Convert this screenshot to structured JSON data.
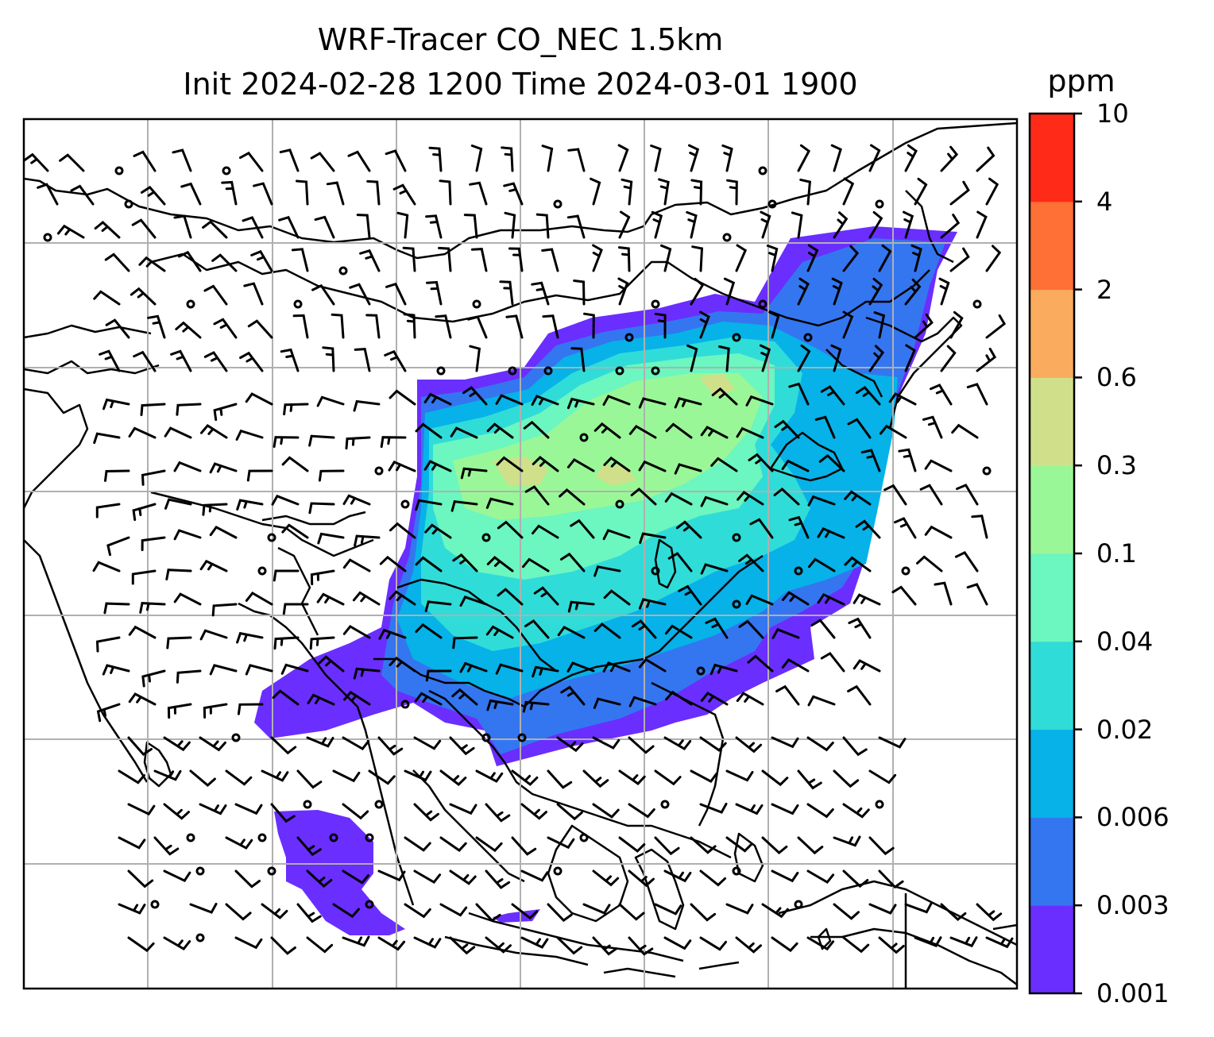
{
  "title": {
    "line1": "WRF-Tracer CO_NEC 1.5km",
    "line2": "Init 2024-02-28 1200 Time 2024-03-01 1900"
  },
  "colorbar": {
    "unit": "ppm",
    "levels": [
      "0.001",
      "0.003",
      "0.006",
      "0.02",
      "0.04",
      "0.1",
      "0.3",
      "0.6",
      "2",
      "4",
      "10"
    ],
    "colors": [
      "#6a2eff",
      "#3476f0",
      "#06b2e8",
      "#30dcd8",
      "#6cf6c0",
      "#9af797",
      "#d0e08a",
      "#fbab5e",
      "#ff7036",
      "#ff2a18"
    ]
  },
  "map": {
    "gridlines": "on",
    "overlay": "wind-barbs",
    "calm_marker": "circle"
  }
}
